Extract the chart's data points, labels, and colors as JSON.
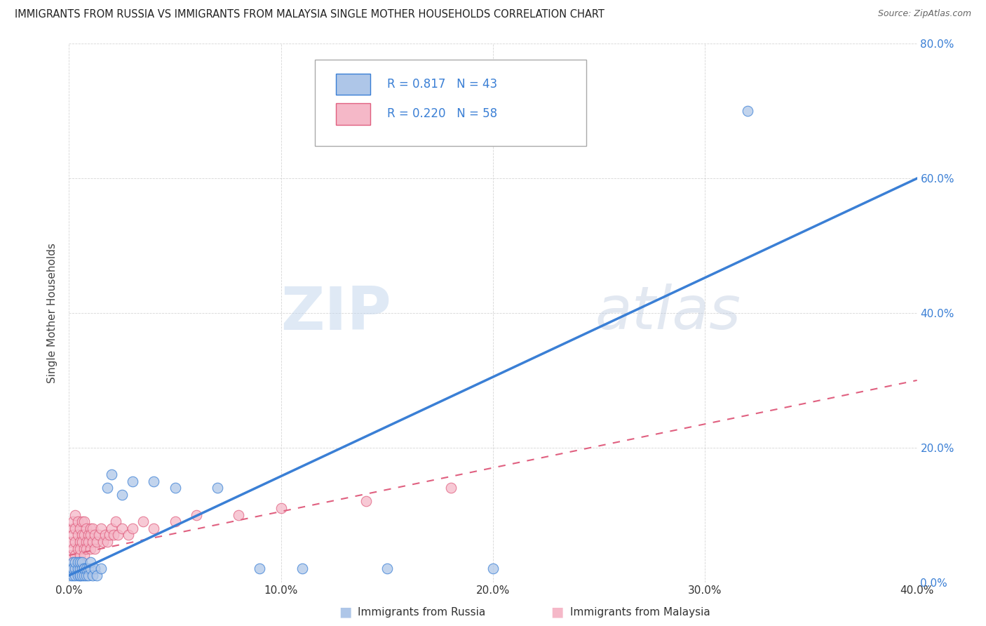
{
  "title": "IMMIGRANTS FROM RUSSIA VS IMMIGRANTS FROM MALAYSIA SINGLE MOTHER HOUSEHOLDS CORRELATION CHART",
  "source": "Source: ZipAtlas.com",
  "ylabel": "Single Mother Households",
  "xlim": [
    0,
    0.4
  ],
  "ylim": [
    0,
    0.8
  ],
  "xtick_vals": [
    0.0,
    0.1,
    0.2,
    0.3,
    0.4
  ],
  "ytick_vals": [
    0.0,
    0.2,
    0.4,
    0.6,
    0.8
  ],
  "russia_R": 0.817,
  "russia_N": 43,
  "malaysia_R": 0.22,
  "malaysia_N": 58,
  "russia_color": "#aec6e8",
  "malaysia_color": "#f5b8c8",
  "russia_line_color": "#3a7fd5",
  "malaysia_line_color": "#e06080",
  "legend_text_color": "#3a7fd5",
  "watermark_zip": "ZIP",
  "watermark_atlas": "atlas",
  "background_color": "#ffffff",
  "russia_x": [
    0.001,
    0.001,
    0.002,
    0.002,
    0.002,
    0.003,
    0.003,
    0.003,
    0.004,
    0.004,
    0.004,
    0.005,
    0.005,
    0.005,
    0.005,
    0.006,
    0.006,
    0.006,
    0.007,
    0.007,
    0.007,
    0.008,
    0.008,
    0.009,
    0.009,
    0.01,
    0.01,
    0.011,
    0.012,
    0.013,
    0.015,
    0.018,
    0.02,
    0.025,
    0.03,
    0.04,
    0.05,
    0.07,
    0.09,
    0.11,
    0.15,
    0.2,
    0.32
  ],
  "russia_y": [
    0.02,
    0.01,
    0.03,
    0.01,
    0.02,
    0.02,
    0.01,
    0.03,
    0.02,
    0.01,
    0.03,
    0.02,
    0.01,
    0.03,
    0.01,
    0.02,
    0.01,
    0.03,
    0.02,
    0.01,
    0.02,
    0.01,
    0.02,
    0.02,
    0.01,
    0.02,
    0.03,
    0.01,
    0.02,
    0.01,
    0.02,
    0.14,
    0.16,
    0.13,
    0.15,
    0.15,
    0.14,
    0.14,
    0.02,
    0.02,
    0.02,
    0.02,
    0.7
  ],
  "malaysia_x": [
    0.001,
    0.001,
    0.002,
    0.002,
    0.002,
    0.002,
    0.003,
    0.003,
    0.003,
    0.003,
    0.004,
    0.004,
    0.004,
    0.005,
    0.005,
    0.005,
    0.005,
    0.006,
    0.006,
    0.006,
    0.007,
    0.007,
    0.007,
    0.007,
    0.008,
    0.008,
    0.008,
    0.009,
    0.009,
    0.01,
    0.01,
    0.01,
    0.011,
    0.011,
    0.012,
    0.012,
    0.013,
    0.014,
    0.015,
    0.016,
    0.017,
    0.018,
    0.019,
    0.02,
    0.021,
    0.022,
    0.023,
    0.025,
    0.028,
    0.03,
    0.035,
    0.04,
    0.05,
    0.06,
    0.08,
    0.1,
    0.14,
    0.18
  ],
  "malaysia_y": [
    0.04,
    0.06,
    0.08,
    0.05,
    0.07,
    0.09,
    0.04,
    0.06,
    0.08,
    0.1,
    0.05,
    0.07,
    0.09,
    0.04,
    0.06,
    0.08,
    0.05,
    0.07,
    0.09,
    0.06,
    0.05,
    0.07,
    0.09,
    0.04,
    0.06,
    0.08,
    0.05,
    0.07,
    0.06,
    0.08,
    0.05,
    0.07,
    0.06,
    0.08,
    0.07,
    0.05,
    0.06,
    0.07,
    0.08,
    0.06,
    0.07,
    0.06,
    0.07,
    0.08,
    0.07,
    0.09,
    0.07,
    0.08,
    0.07,
    0.08,
    0.09,
    0.08,
    0.09,
    0.1,
    0.1,
    0.11,
    0.12,
    0.14
  ],
  "russia_trend": [
    0.0,
    0.4,
    0.003,
    0.6
  ],
  "malaysia_trend": [
    0.0,
    0.4,
    0.02,
    0.3
  ]
}
